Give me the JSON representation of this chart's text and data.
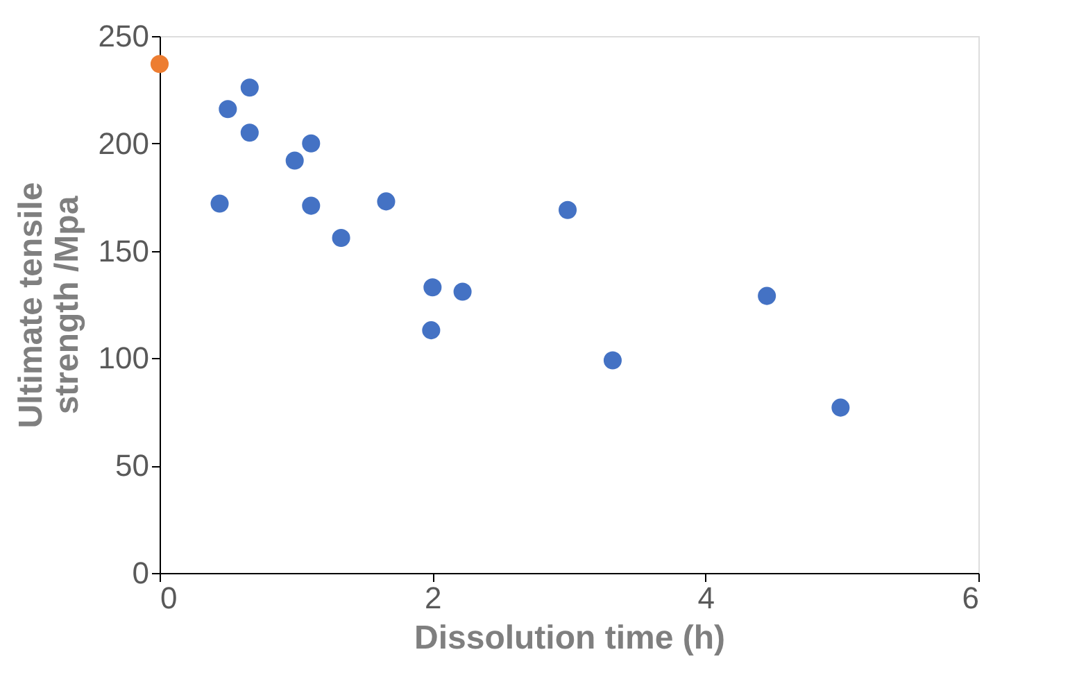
{
  "chart_data": {
    "type": "scatter",
    "xlabel": "Dissolution time (h)",
    "ylabel": "Ultimate  tensile strength /Mpa",
    "xlim": [
      0,
      6
    ],
    "ylim": [
      0,
      250
    ],
    "xticks": [
      0,
      2,
      4,
      6
    ],
    "yticks": [
      0,
      50,
      100,
      150,
      200,
      250
    ],
    "grid": false,
    "legend": false,
    "series": [
      {
        "color": "#ed7d31",
        "x": [
          0
        ],
        "values": [
          237
        ]
      },
      {
        "color": "#4472c4",
        "x": [
          0.44,
          0.5,
          0.66,
          0.66,
          0.99,
          1.11,
          1.11,
          1.33,
          1.66,
          2.0,
          1.99,
          2.22,
          2.99,
          3.32,
          4.45,
          4.99
        ],
        "values": [
          172,
          216,
          226,
          205,
          192,
          200,
          171,
          156,
          173,
          133,
          113,
          131,
          169,
          99,
          129,
          77
        ]
      }
    ]
  }
}
